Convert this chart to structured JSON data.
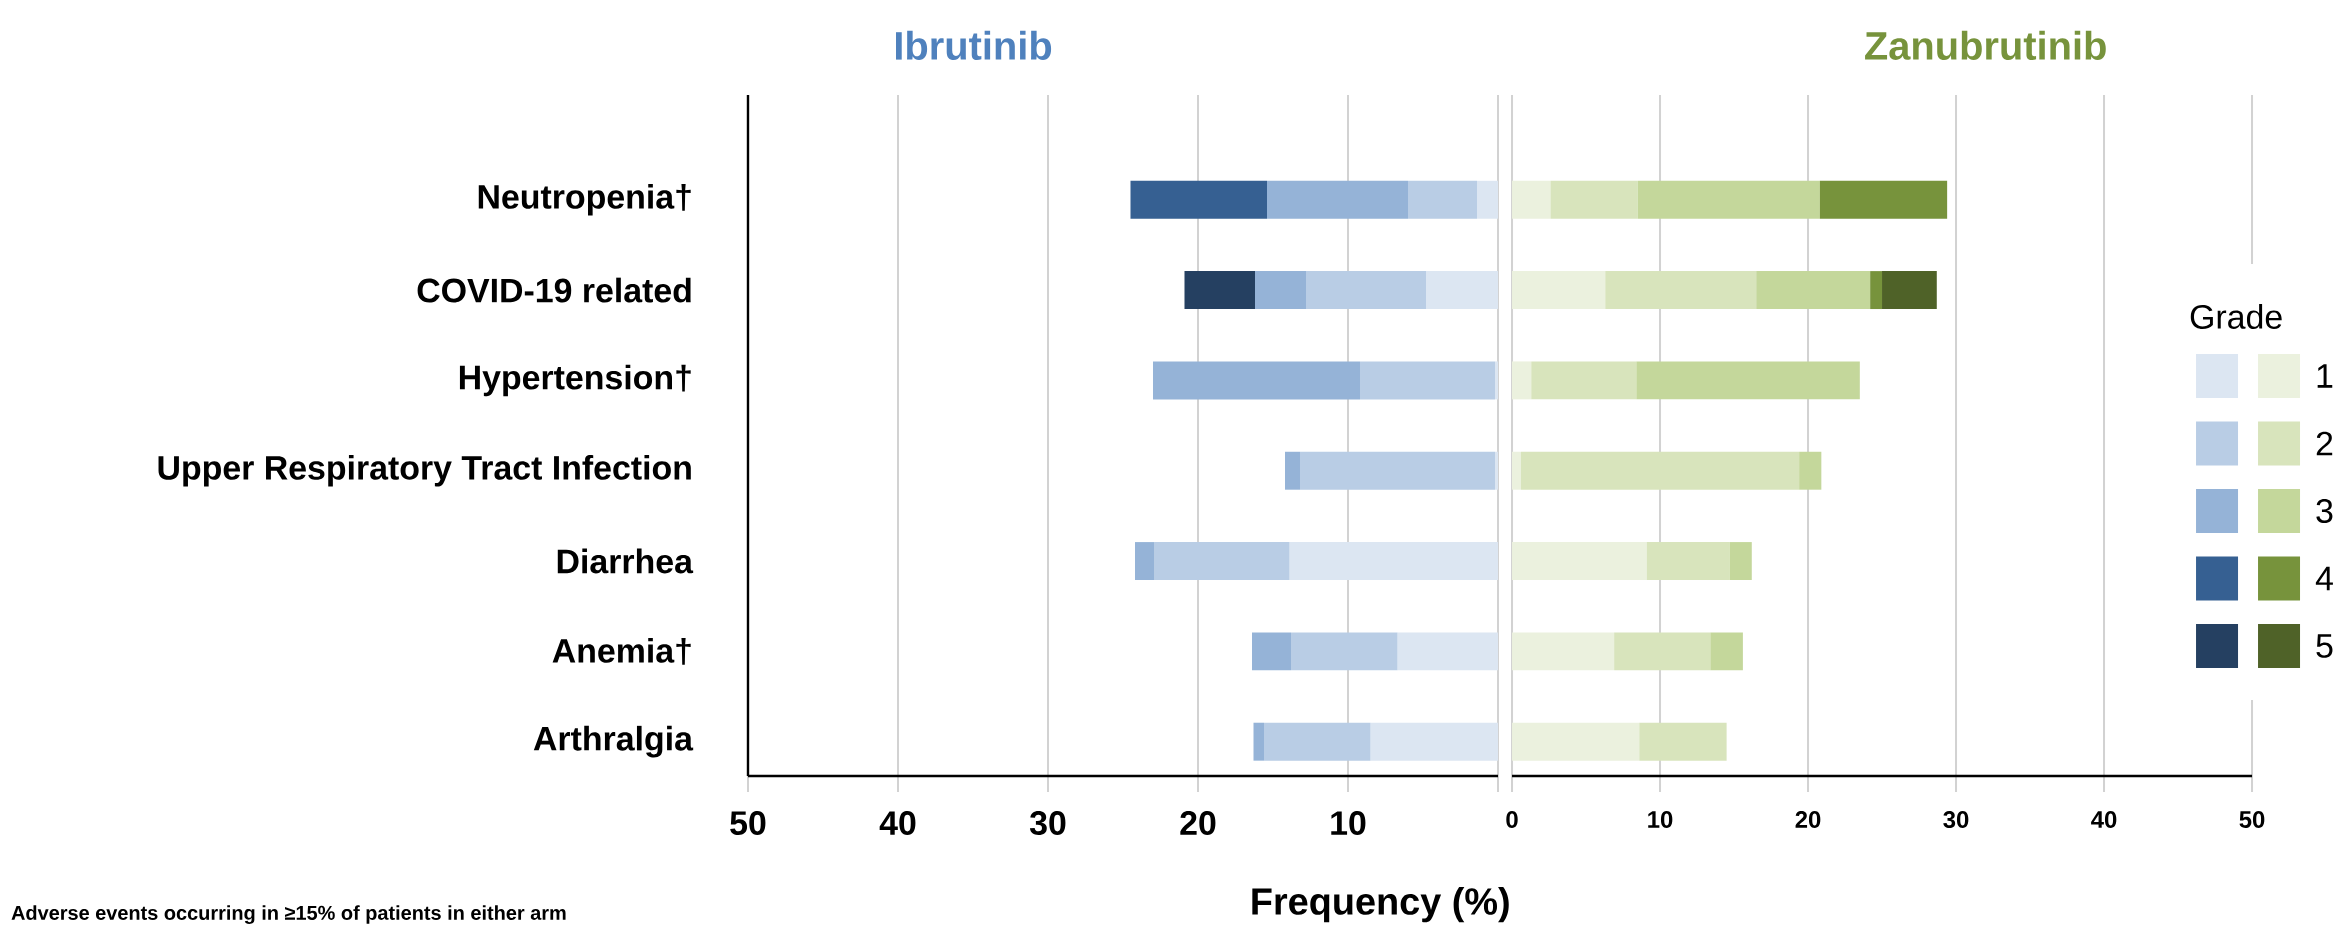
{
  "chart_data": [
    {
      "type": "bar",
      "orientation": "horizontal",
      "stacked": true,
      "title": "Ibrutinib",
      "xlabel": "Frequency (%)",
      "categories": [
        "Neutropenia†",
        "COVID-19 related",
        "Hypertension†",
        "Upper Respiratory Tract Infection",
        "Diarrhea",
        "Anemia†",
        "Arthralgia"
      ],
      "series": [
        {
          "color": "#dce6f2",
          "values": [
            1.4,
            4.8,
            0.2,
            0.2,
            13.9,
            6.7,
            8.5
          ]
        },
        {
          "color": "#b9cde5",
          "values": [
            4.6,
            8.0,
            9.0,
            13.0,
            9.0,
            7.1,
            7.1
          ]
        },
        {
          "color": "#95b3d7",
          "values": [
            9.4,
            3.4,
            13.8,
            1.0,
            1.3,
            2.6,
            0.7
          ]
        },
        {
          "color": "#366092",
          "values": [
            9.1,
            0,
            0,
            0,
            0,
            0,
            0
          ]
        },
        {
          "color": "#254061",
          "values": [
            0,
            4.7,
            0,
            0,
            0,
            0,
            0
          ]
        }
      ],
      "xlim": [
        50,
        0
      ],
      "xticks": [
        50,
        40,
        30,
        20,
        10,
        {
          "value": 0,
          "label": null
        }
      ],
      "grid": "x",
      "annotations": [
        "Adverse events occurring in ≥15% of patients in either arm"
      ]
    },
    {
      "type": "bar",
      "orientation": "horizontal",
      "stacked": true,
      "title": "Zanubrutinib",
      "legend_title": "Grade",
      "legend": "right",
      "categories": [
        null,
        null,
        null,
        null,
        null,
        null,
        null
      ],
      "series": [
        {
          "name": "1",
          "color": "#ebf1de",
          "values": [
            2.6,
            6.3,
            1.3,
            0.6,
            9.1,
            6.9,
            8.6
          ]
        },
        {
          "name": "2",
          "color": "#d8e4bc",
          "values": [
            5.9,
            10.2,
            7.1,
            18.8,
            5.6,
            6.5,
            5.9
          ]
        },
        {
          "name": "3",
          "color": "#c4d79b",
          "values": [
            12.3,
            7.7,
            15.1,
            1.5,
            1.5,
            2.2,
            0
          ]
        },
        {
          "name": "4",
          "color": "#77933c",
          "values": [
            8.6,
            0.8,
            0,
            0,
            0,
            0,
            0
          ]
        },
        {
          "name": "5",
          "color": "#4f6228",
          "values": [
            0,
            3.7,
            0,
            0,
            0,
            0,
            0
          ]
        }
      ],
      "xlim": [
        0,
        50
      ],
      "xticks": [
        0,
        10,
        20,
        30,
        40,
        50
      ],
      "grid": "x",
      "tick_labels": "x"
    }
  ]
}
